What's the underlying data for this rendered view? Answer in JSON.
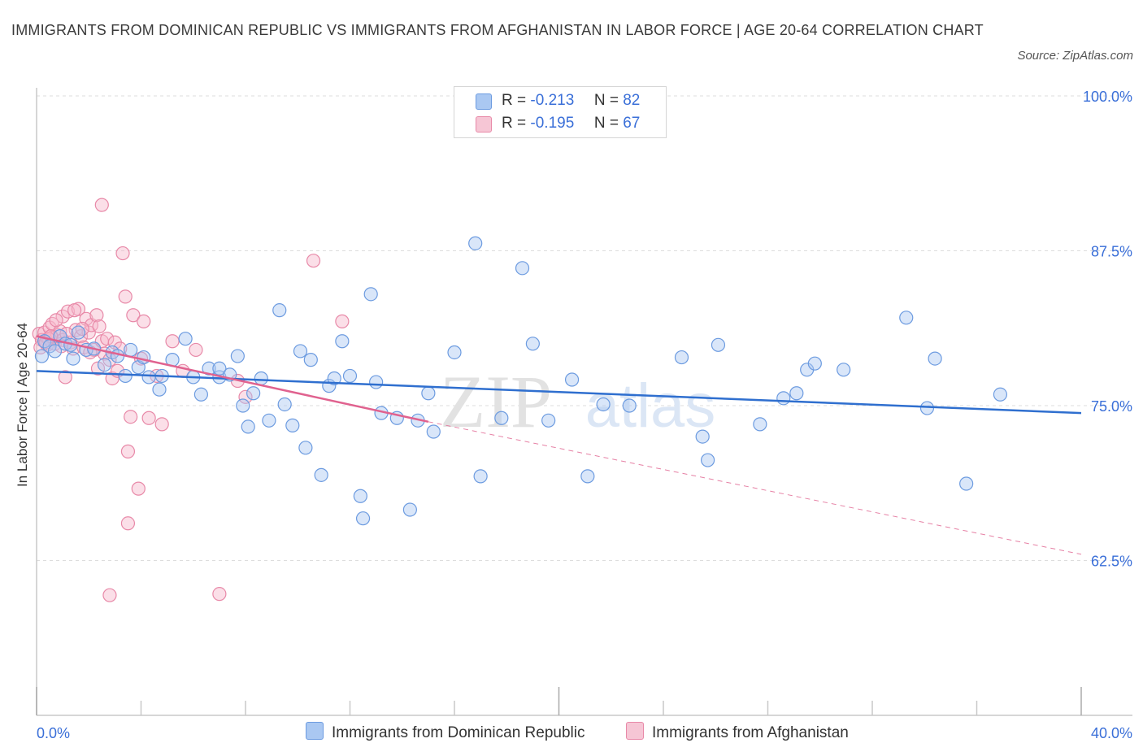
{
  "title": "IMMIGRANTS FROM DOMINICAN REPUBLIC VS IMMIGRANTS FROM AFGHANISTAN IN LABOR FORCE | AGE 20-64 CORRELATION CHART",
  "source": "Source: ZipAtlas.com",
  "watermark": {
    "zip": "ZIP",
    "atlas": "atlas"
  },
  "legend_top": {
    "r_label": "R =",
    "n_label": "N =",
    "rows": [
      {
        "r": "-0.213",
        "n": "82"
      },
      {
        "r": "-0.195",
        "n": "67"
      }
    ]
  },
  "colors": {
    "blue_fill": "#aac8f2",
    "blue_stroke": "#6c9be0",
    "blue_line": "#2f6fcf",
    "pink_fill": "#f6b8cc",
    "pink_stroke": "#e889a8",
    "pink_line": "#e0628f",
    "axis_text": "#3a6fd8",
    "grid": "#dddddd"
  },
  "chart_data": {
    "type": "scatter",
    "title": "IMMIGRANTS FROM DOMINICAN REPUBLIC VS IMMIGRANTS FROM AFGHANISTAN IN LABOR FORCE | AGE 20-64 CORRELATION CHART",
    "xlabel": "",
    "ylabel": "In Labor Force | Age 20-64",
    "xlim": [
      0,
      40
    ],
    "ylim": [
      50,
      100
    ],
    "x_tick_labels": [
      "0.0%",
      "40.0%"
    ],
    "y_ticks": [
      62.5,
      75.0,
      87.5,
      100.0
    ],
    "y_tick_labels": [
      "62.5%",
      "75.0%",
      "87.5%",
      "100.0%"
    ],
    "grid": true,
    "legend_position": "bottom",
    "series": [
      {
        "name": "Immigrants from Dominican Republic",
        "r": -0.213,
        "n": 82,
        "trend": {
          "x0": 0,
          "y0": 77.8,
          "x1": 40,
          "y1": 74.4
        },
        "points": [
          [
            0.3,
            80.2
          ],
          [
            0.5,
            79.8
          ],
          [
            0.7,
            79.4
          ],
          [
            0.9,
            80.6
          ],
          [
            1.1,
            80.0
          ],
          [
            1.4,
            78.8
          ],
          [
            1.6,
            80.9
          ],
          [
            1.9,
            79.5
          ],
          [
            2.2,
            79.6
          ],
          [
            2.6,
            78.3
          ],
          [
            2.9,
            79.3
          ],
          [
            3.1,
            79.0
          ],
          [
            3.4,
            77.4
          ],
          [
            3.6,
            79.5
          ],
          [
            3.9,
            78.1
          ],
          [
            4.1,
            78.9
          ],
          [
            4.3,
            77.3
          ],
          [
            4.7,
            76.3
          ],
          [
            4.8,
            77.4
          ],
          [
            5.2,
            78.7
          ],
          [
            5.7,
            80.4
          ],
          [
            6.0,
            77.3
          ],
          [
            6.3,
            75.9
          ],
          [
            6.6,
            78.0
          ],
          [
            7.0,
            77.3
          ],
          [
            7.0,
            78.0
          ],
          [
            7.4,
            77.5
          ],
          [
            7.7,
            79.0
          ],
          [
            7.9,
            75.0
          ],
          [
            8.1,
            73.3
          ],
          [
            8.3,
            76.0
          ],
          [
            8.6,
            77.2
          ],
          [
            8.9,
            73.8
          ],
          [
            9.3,
            82.7
          ],
          [
            9.5,
            75.1
          ],
          [
            9.8,
            73.4
          ],
          [
            10.1,
            79.4
          ],
          [
            10.3,
            71.6
          ],
          [
            10.5,
            78.7
          ],
          [
            10.9,
            69.4
          ],
          [
            11.2,
            76.6
          ],
          [
            11.4,
            77.2
          ],
          [
            11.7,
            80.2
          ],
          [
            12.0,
            77.4
          ],
          [
            12.4,
            67.7
          ],
          [
            12.5,
            65.9
          ],
          [
            12.8,
            84.0
          ],
          [
            13.0,
            76.9
          ],
          [
            13.2,
            74.4
          ],
          [
            13.8,
            74.0
          ],
          [
            14.3,
            66.6
          ],
          [
            14.6,
            73.8
          ],
          [
            15.0,
            76.0
          ],
          [
            15.2,
            72.9
          ],
          [
            16.0,
            79.3
          ],
          [
            16.8,
            88.1
          ],
          [
            17.0,
            69.3
          ],
          [
            17.8,
            74.0
          ],
          [
            18.6,
            86.1
          ],
          [
            19.0,
            80.0
          ],
          [
            19.6,
            73.8
          ],
          [
            20.5,
            77.1
          ],
          [
            21.1,
            69.3
          ],
          [
            21.7,
            75.1
          ],
          [
            22.7,
            75.0
          ],
          [
            24.7,
            78.9
          ],
          [
            25.5,
            72.5
          ],
          [
            25.7,
            70.6
          ],
          [
            26.1,
            79.9
          ],
          [
            27.7,
            73.5
          ],
          [
            28.6,
            75.6
          ],
          [
            29.1,
            76.0
          ],
          [
            29.5,
            77.9
          ],
          [
            29.8,
            78.4
          ],
          [
            30.9,
            77.9
          ],
          [
            33.3,
            82.1
          ],
          [
            34.1,
            74.8
          ],
          [
            34.4,
            78.8
          ],
          [
            35.6,
            68.7
          ],
          [
            36.9,
            75.9
          ],
          [
            0.2,
            79.0
          ],
          [
            1.3,
            79.9
          ]
        ]
      },
      {
        "name": "Immigrants from Afghanistan",
        "r": -0.195,
        "n": 67,
        "trend": {
          "x0": 0,
          "y0": 80.6,
          "x1": 15.0,
          "y1": 73.7
        },
        "trend_extension": {
          "x0": 15.0,
          "y0": 73.7,
          "x1": 40,
          "y1": 63.0
        },
        "points": [
          [
            0.1,
            80.8
          ],
          [
            0.2,
            80.3
          ],
          [
            0.3,
            80.9
          ],
          [
            0.4,
            79.9
          ],
          [
            0.5,
            81.3
          ],
          [
            0.6,
            80.5
          ],
          [
            0.6,
            81.6
          ],
          [
            0.7,
            80.0
          ],
          [
            0.8,
            80.7
          ],
          [
            0.9,
            81.0
          ],
          [
            1.0,
            82.2
          ],
          [
            1.0,
            80.3
          ],
          [
            1.1,
            77.3
          ],
          [
            1.2,
            82.6
          ],
          [
            1.3,
            80.1
          ],
          [
            1.4,
            79.6
          ],
          [
            1.5,
            81.1
          ],
          [
            1.6,
            82.8
          ],
          [
            1.7,
            80.6
          ],
          [
            1.8,
            79.7
          ],
          [
            1.9,
            82.0
          ],
          [
            2.0,
            80.9
          ],
          [
            2.1,
            81.5
          ],
          [
            2.2,
            79.5
          ],
          [
            2.3,
            82.3
          ],
          [
            2.4,
            81.4
          ],
          [
            2.5,
            80.2
          ],
          [
            2.6,
            79.2
          ],
          [
            2.7,
            80.4
          ],
          [
            2.8,
            78.7
          ],
          [
            2.9,
            77.2
          ],
          [
            3.0,
            80.1
          ],
          [
            3.1,
            77.8
          ],
          [
            3.2,
            79.6
          ],
          [
            3.3,
            87.3
          ],
          [
            3.4,
            83.8
          ],
          [
            3.5,
            71.3
          ],
          [
            3.5,
            65.5
          ],
          [
            3.6,
            74.1
          ],
          [
            3.7,
            82.3
          ],
          [
            3.9,
            68.3
          ],
          [
            4.0,
            78.8
          ],
          [
            4.1,
            81.8
          ],
          [
            4.3,
            74.0
          ],
          [
            4.6,
            77.4
          ],
          [
            4.8,
            73.5
          ],
          [
            5.2,
            80.2
          ],
          [
            5.6,
            77.8
          ],
          [
            6.1,
            79.5
          ],
          [
            7.0,
            59.8
          ],
          [
            7.7,
            77.0
          ],
          [
            8.0,
            75.7
          ],
          [
            10.6,
            86.7
          ],
          [
            11.7,
            81.8
          ],
          [
            2.5,
            91.2
          ],
          [
            2.8,
            59.7
          ],
          [
            0.15,
            79.7
          ],
          [
            0.45,
            80.4
          ],
          [
            0.75,
            81.9
          ],
          [
            1.15,
            80.8
          ],
          [
            1.45,
            82.7
          ],
          [
            1.75,
            81.2
          ],
          [
            2.05,
            79.3
          ],
          [
            2.35,
            78.0
          ],
          [
            0.35,
            80.1
          ],
          [
            0.55,
            80.6
          ],
          [
            0.95,
            79.8
          ]
        ]
      }
    ]
  },
  "legend_bottom": {
    "items": [
      {
        "label": "Immigrants from Dominican Republic"
      },
      {
        "label": "Immigrants from Afghanistan"
      }
    ]
  }
}
